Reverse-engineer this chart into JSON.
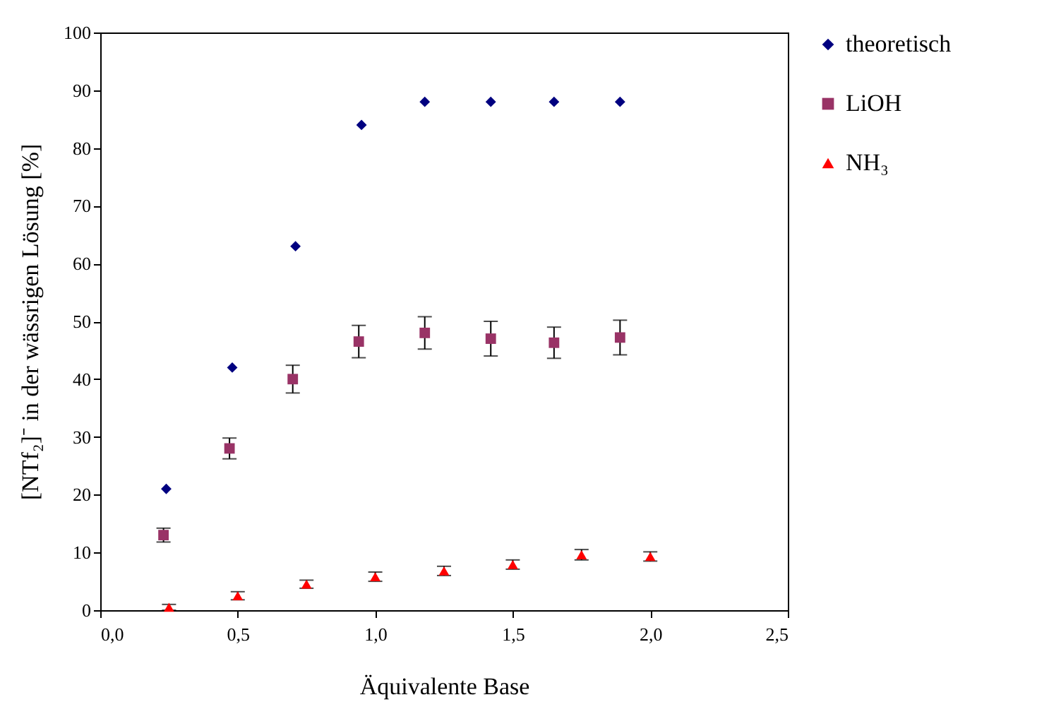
{
  "chart_data": {
    "type": "scatter",
    "xlabel": "Äquivalente Base",
    "ylabel": "[NTf₂]⁻ in der wässrigen Lösung [%]",
    "xlim": [
      0,
      2.5
    ],
    "xticks": [
      {
        "value": 0,
        "label": "0,0"
      },
      {
        "value": 0.5,
        "label": "0,5"
      },
      {
        "value": 1,
        "label": "1,0"
      },
      {
        "value": 1.5,
        "label": "1,5"
      },
      {
        "value": 2,
        "label": "2,0"
      },
      {
        "value": 2.5,
        "label": "2,5"
      }
    ],
    "ylim": [
      0,
      100
    ],
    "yticks": [
      0,
      10,
      20,
      30,
      40,
      50,
      60,
      70,
      80,
      90,
      100
    ],
    "grid": false,
    "legend": "right",
    "series": [
      {
        "name": "theoretisch",
        "color": "#000080",
        "marker": "diamond",
        "x": [
          0.24,
          0.48,
          0.71,
          0.95,
          1.18,
          1.42,
          1.65,
          1.89
        ],
        "values": [
          21,
          42,
          63,
          84,
          88,
          88,
          88,
          88
        ]
      },
      {
        "name": "LiOH",
        "color": "#993366",
        "marker": "square",
        "x": [
          0.23,
          0.47,
          0.7,
          0.94,
          1.18,
          1.42,
          1.65,
          1.89
        ],
        "values": [
          13,
          28,
          40,
          46.5,
          48,
          47,
          46.3,
          47.2
        ],
        "errors": [
          1.2,
          1.8,
          2.4,
          2.8,
          2.8,
          3,
          2.7,
          3
        ]
      },
      {
        "name": "NH₃",
        "color": "#ff0000",
        "marker": "triangle",
        "x": [
          0.25,
          0.5,
          0.75,
          1,
          1.25,
          1.5,
          1.75,
          2
        ],
        "values": [
          0.5,
          2.5,
          4.5,
          5.8,
          6.8,
          7.9,
          9.6,
          9.3
        ],
        "errors": [
          0.5,
          0.7,
          0.7,
          0.8,
          0.8,
          0.8,
          0.9,
          0.8
        ]
      }
    ]
  }
}
